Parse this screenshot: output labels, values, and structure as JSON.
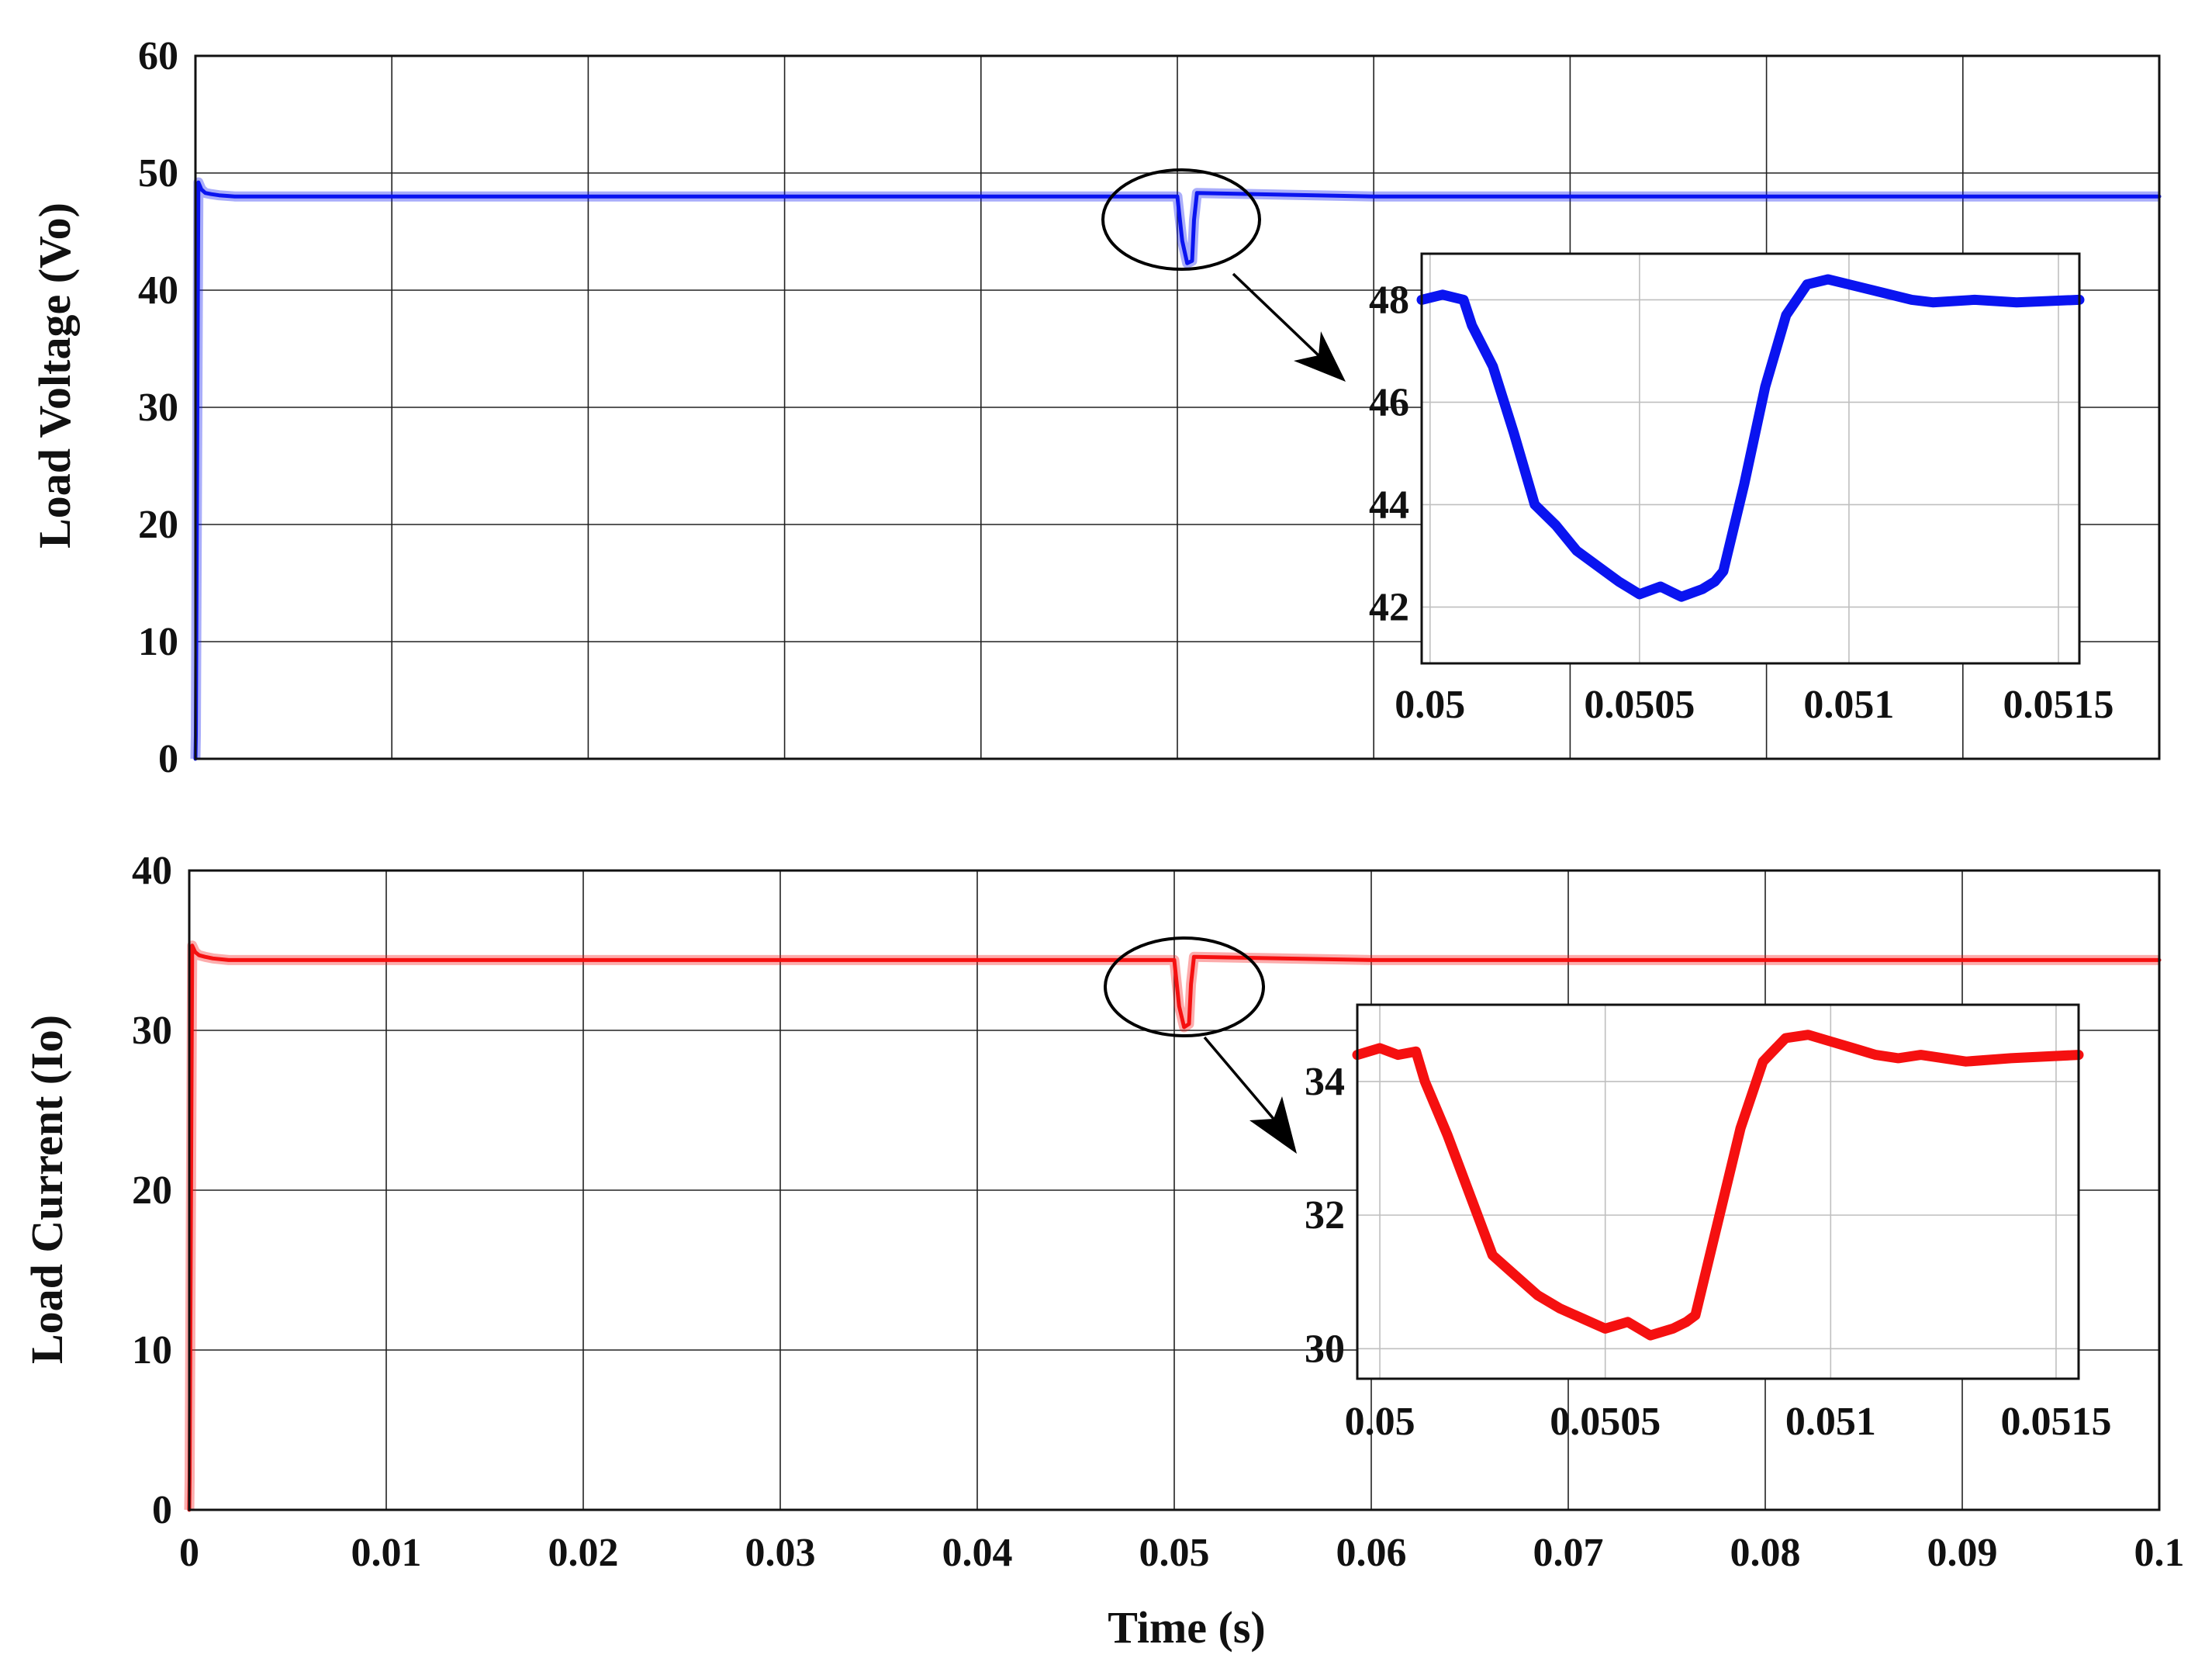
{
  "colors": {
    "voltage": "#0a14f0",
    "current": "#f51010",
    "grid": "#222222",
    "inset_grid": "#bfbfbf",
    "annotation": "#000000"
  },
  "xlabel": "Time (s)",
  "chart_data": [
    {
      "type": "line",
      "name": "voltage-main",
      "ylabel": "Load Voltage (Vo)",
      "xlim": [
        0,
        0.1
      ],
      "ylim": [
        0,
        60
      ],
      "xticks": [
        0,
        0.01,
        0.02,
        0.03,
        0.04,
        0.05,
        0.06,
        0.07,
        0.08,
        0.09,
        0.1
      ],
      "yticks": [
        0,
        10,
        20,
        30,
        40,
        50,
        60
      ],
      "ytick_labels": [
        "0",
        "10",
        "20",
        "30",
        "40",
        "50",
        "60"
      ],
      "grid": true,
      "series": [
        {
          "color": "#0a14f0",
          "x": [
            0,
            2e-05,
            0.00015,
            0.0003,
            0.0005,
            0.0008,
            0.0012,
            0.002,
            0.01,
            0.02,
            0.03,
            0.04,
            0.0499,
            0.05,
            0.05025,
            0.0505,
            0.05075,
            0.05085,
            0.051,
            0.06,
            0.07,
            0.08,
            0.09,
            0.1
          ],
          "y": [
            0,
            2,
            49.2,
            48.6,
            48.3,
            48.2,
            48.1,
            48.0,
            48.0,
            48.0,
            48.0,
            48.0,
            48.0,
            48.0,
            44.2,
            42.3,
            42.5,
            46.0,
            48.3,
            48.0,
            48.0,
            48.0,
            48.0,
            48.0
          ]
        }
      ]
    },
    {
      "type": "line",
      "name": "voltage-inset",
      "xlim": [
        0.04998,
        0.05155
      ],
      "ylim": [
        40.9,
        48.9
      ],
      "xticks": [
        0.05,
        0.0505,
        0.051,
        0.0515
      ],
      "xtick_labels": [
        "0.05",
        "0.0505",
        "0.051",
        "0.0515"
      ],
      "yticks": [
        42,
        44,
        46,
        48
      ],
      "ytick_labels": [
        "42",
        "44",
        "46",
        "48"
      ],
      "grid": true,
      "series": [
        {
          "color": "#0a14f0",
          "x": [
            0.04998,
            0.05003,
            0.05008,
            0.0501,
            0.05015,
            0.0502,
            0.05025,
            0.0503,
            0.05035,
            0.0504,
            0.05045,
            0.0505,
            0.05055,
            0.0506,
            0.05065,
            0.05068,
            0.0507,
            0.05075,
            0.0508,
            0.05085,
            0.0509,
            0.05095,
            0.051,
            0.05105,
            0.0511,
            0.05115,
            0.0512,
            0.0513,
            0.0514,
            0.05155
          ],
          "y": [
            48.0,
            48.1,
            48.0,
            47.5,
            46.7,
            45.4,
            44.0,
            43.6,
            43.1,
            42.8,
            42.5,
            42.25,
            42.4,
            42.2,
            42.35,
            42.5,
            42.7,
            44.4,
            46.3,
            47.7,
            48.3,
            48.4,
            48.3,
            48.2,
            48.1,
            48.0,
            47.95,
            48.0,
            47.95,
            48.0
          ]
        }
      ]
    },
    {
      "type": "line",
      "name": "current-main",
      "ylabel": "Load Current (Io)",
      "xlim": [
        0,
        0.1
      ],
      "ylim": [
        0,
        40
      ],
      "xticks": [
        0,
        0.01,
        0.02,
        0.03,
        0.04,
        0.05,
        0.06,
        0.07,
        0.08,
        0.09,
        0.1
      ],
      "xtick_labels": [
        "0",
        "0.01",
        "0.02",
        "0.03",
        "0.04",
        "0.05",
        "0.06",
        "0.07",
        "0.08",
        "0.09",
        "0.1"
      ],
      "yticks": [
        0,
        10,
        20,
        30,
        40
      ],
      "ytick_labels": [
        "0",
        "10",
        "20",
        "30",
        "40"
      ],
      "grid": true,
      "series": [
        {
          "color": "#f51010",
          "x": [
            0,
            2e-05,
            0.00015,
            0.0003,
            0.0005,
            0.0008,
            0.0012,
            0.002,
            0.01,
            0.02,
            0.03,
            0.04,
            0.0499,
            0.05,
            0.05025,
            0.0505,
            0.05075,
            0.05085,
            0.051,
            0.06,
            0.07,
            0.08,
            0.09,
            0.1
          ],
          "y": [
            0,
            2,
            35.3,
            34.9,
            34.7,
            34.6,
            34.5,
            34.4,
            34.4,
            34.4,
            34.4,
            34.4,
            34.4,
            34.4,
            31.5,
            30.2,
            30.4,
            32.9,
            34.6,
            34.4,
            34.4,
            34.4,
            34.4,
            34.4
          ]
        }
      ]
    },
    {
      "type": "line",
      "name": "current-inset",
      "xlim": [
        0.04995,
        0.05155
      ],
      "ylim": [
        29.55,
        35.15
      ],
      "xticks": [
        0.05,
        0.0505,
        0.051,
        0.0515
      ],
      "xtick_labels": [
        "0.05",
        "0.0505",
        "0.051",
        "0.0515"
      ],
      "yticks": [
        30,
        32,
        34
      ],
      "ytick_labels": [
        "30",
        "32",
        "34"
      ],
      "grid": true,
      "series": [
        {
          "color": "#f51010",
          "x": [
            0.04995,
            0.05,
            0.05004,
            0.05008,
            0.0501,
            0.05015,
            0.0502,
            0.05025,
            0.0503,
            0.05035,
            0.0504,
            0.05045,
            0.0505,
            0.05055,
            0.0506,
            0.05065,
            0.05068,
            0.0507,
            0.05075,
            0.0508,
            0.05085,
            0.0509,
            0.05095,
            0.051,
            0.05105,
            0.0511,
            0.05115,
            0.0512,
            0.0513,
            0.0514,
            0.05155
          ],
          "y": [
            34.4,
            34.5,
            34.4,
            34.45,
            34.0,
            33.2,
            32.3,
            31.4,
            31.1,
            30.8,
            30.6,
            30.45,
            30.3,
            30.4,
            30.2,
            30.3,
            30.4,
            30.5,
            31.9,
            33.3,
            34.3,
            34.65,
            34.7,
            34.6,
            34.5,
            34.4,
            34.35,
            34.4,
            34.3,
            34.35,
            34.4
          ]
        }
      ]
    }
  ]
}
